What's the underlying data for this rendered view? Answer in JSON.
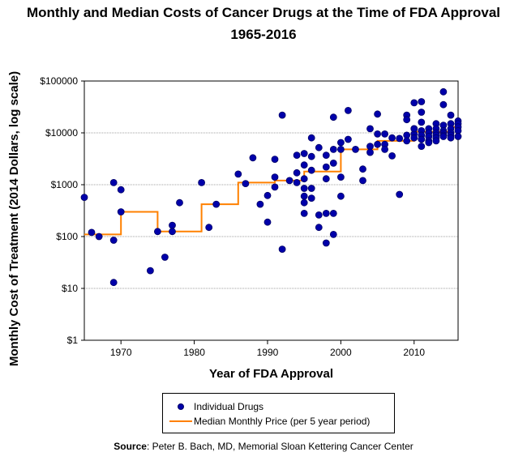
{
  "header": {
    "title_line1": "Monthly and Median Costs of Cancer Drugs at the Time of FDA Approval",
    "title_line2": "1965-2016"
  },
  "legend": {
    "scatter_label": "Individual Drugs",
    "line_label": "Median Monthly Price (per 5 year period)"
  },
  "source": {
    "label": "Source",
    "text": ": Peter B. Bach, MD, Memorial Sloan Kettering Cancer Center"
  },
  "colors": {
    "scatter": "#0000aa",
    "scatter_edge": "#000066",
    "line": "#ff8000",
    "grid": "#a0a0a0"
  },
  "chart_data": {
    "type": "scatter",
    "title": "Monthly and Median Costs of Cancer Drugs at the Time of FDA Approval 1965-2016",
    "xlabel": "Year of FDA Approval",
    "ylabel": "Monthly Cost of Treatment (2014 Dollars, log scale)",
    "xlim": [
      1965,
      2016
    ],
    "ylim": [
      1,
      100000
    ],
    "yscale": "log",
    "xticks": [
      1970,
      1980,
      1990,
      2000,
      2010
    ],
    "yticks": [
      {
        "value": 1,
        "label": "$1"
      },
      {
        "value": 10,
        "label": "$10"
      },
      {
        "value": 100,
        "label": "$100"
      },
      {
        "value": 1000,
        "label": "$1000"
      },
      {
        "value": 10000,
        "label": "$10000"
      },
      {
        "value": 100000,
        "label": "$100000"
      }
    ],
    "grid": "horizontal",
    "legend_position": "bottom",
    "series": [
      {
        "name": "Individual Drugs",
        "type": "scatter",
        "points": [
          [
            1965,
            570
          ],
          [
            1966,
            120
          ],
          [
            1967,
            100
          ],
          [
            1969,
            1100
          ],
          [
            1969,
            85
          ],
          [
            1969,
            13
          ],
          [
            1970,
            800
          ],
          [
            1970,
            300
          ],
          [
            1974,
            22
          ],
          [
            1975,
            125
          ],
          [
            1976,
            40
          ],
          [
            1977,
            165
          ],
          [
            1977,
            125
          ],
          [
            1978,
            450
          ],
          [
            1981,
            1100
          ],
          [
            1982,
            150
          ],
          [
            1983,
            420
          ],
          [
            1986,
            1600
          ],
          [
            1987,
            1050
          ],
          [
            1988,
            3300
          ],
          [
            1989,
            420
          ],
          [
            1990,
            620
          ],
          [
            1990,
            190
          ],
          [
            1991,
            3100
          ],
          [
            1991,
            1400
          ],
          [
            1991,
            900
          ],
          [
            1992,
            22000
          ],
          [
            1992,
            57
          ],
          [
            1993,
            1200
          ],
          [
            1994,
            3700
          ],
          [
            1994,
            1700
          ],
          [
            1994,
            1100
          ],
          [
            1995,
            4000
          ],
          [
            1995,
            2400
          ],
          [
            1995,
            1300
          ],
          [
            1995,
            850
          ],
          [
            1995,
            600
          ],
          [
            1995,
            450
          ],
          [
            1995,
            280
          ],
          [
            1996,
            8000
          ],
          [
            1996,
            3500
          ],
          [
            1996,
            1900
          ],
          [
            1996,
            850
          ],
          [
            1996,
            550
          ],
          [
            1997,
            5200
          ],
          [
            1997,
            260
          ],
          [
            1997,
            150
          ],
          [
            1998,
            3700
          ],
          [
            1998,
            2200
          ],
          [
            1998,
            1300
          ],
          [
            1998,
            280
          ],
          [
            1998,
            75
          ],
          [
            1999,
            20000
          ],
          [
            1999,
            4800
          ],
          [
            1999,
            2600
          ],
          [
            1999,
            280
          ],
          [
            1999,
            110
          ],
          [
            2000,
            6500
          ],
          [
            2000,
            4800
          ],
          [
            2000,
            1400
          ],
          [
            2000,
            600
          ],
          [
            2001,
            27000
          ],
          [
            2001,
            7500
          ],
          [
            2002,
            4800
          ],
          [
            2003,
            2000
          ],
          [
            2003,
            1200
          ],
          [
            2004,
            12000
          ],
          [
            2004,
            5500
          ],
          [
            2004,
            4200
          ],
          [
            2005,
            23000
          ],
          [
            2005,
            9500
          ],
          [
            2005,
            6000
          ],
          [
            2006,
            9500
          ],
          [
            2006,
            6000
          ],
          [
            2006,
            4800
          ],
          [
            2007,
            8000
          ],
          [
            2007,
            3600
          ],
          [
            2008,
            7800
          ],
          [
            2008,
            650
          ],
          [
            2009,
            22000
          ],
          [
            2009,
            18000
          ],
          [
            2009,
            9000
          ],
          [
            2009,
            7000
          ],
          [
            2010,
            38000
          ],
          [
            2010,
            12000
          ],
          [
            2010,
            9500
          ],
          [
            2010,
            8000
          ],
          [
            2010,
            12000
          ],
          [
            2011,
            40000
          ],
          [
            2011,
            25000
          ],
          [
            2011,
            16000
          ],
          [
            2011,
            11000
          ],
          [
            2011,
            9000
          ],
          [
            2011,
            7500
          ],
          [
            2011,
            5500
          ],
          [
            2012,
            12000
          ],
          [
            2012,
            10000
          ],
          [
            2012,
            8500
          ],
          [
            2012,
            7000
          ],
          [
            2012,
            6500
          ],
          [
            2013,
            15000
          ],
          [
            2013,
            12000
          ],
          [
            2013,
            10000
          ],
          [
            2013,
            9000
          ],
          [
            2013,
            8000
          ],
          [
            2013,
            7000
          ],
          [
            2014,
            62000
          ],
          [
            2014,
            35000
          ],
          [
            2014,
            14000
          ],
          [
            2014,
            11000
          ],
          [
            2014,
            10000
          ],
          [
            2014,
            9000
          ],
          [
            2014,
            8500
          ],
          [
            2015,
            22000
          ],
          [
            2015,
            15000
          ],
          [
            2015,
            12000
          ],
          [
            2015,
            10000
          ],
          [
            2015,
            9000
          ],
          [
            2015,
            8000
          ],
          [
            2016,
            17000
          ],
          [
            2016,
            15000
          ],
          [
            2016,
            13000
          ],
          [
            2016,
            11000
          ],
          [
            2016,
            8500
          ]
        ]
      },
      {
        "name": "Median Monthly Price (per 5 year period)",
        "type": "step",
        "points": [
          [
            1965,
            110
          ],
          [
            1970,
            110
          ],
          [
            1970,
            300
          ],
          [
            1975,
            300
          ],
          [
            1975,
            125
          ],
          [
            1981,
            125
          ],
          [
            1981,
            420
          ],
          [
            1986,
            420
          ],
          [
            1986,
            1100
          ],
          [
            1991,
            1100
          ],
          [
            1991,
            1200
          ],
          [
            1995,
            1200
          ],
          [
            1995,
            1800
          ],
          [
            2000,
            1800
          ],
          [
            2000,
            4800
          ],
          [
            2005,
            4800
          ],
          [
            2005,
            7000
          ],
          [
            2010,
            7000
          ],
          [
            2010,
            10500
          ],
          [
            2015,
            10500
          ],
          [
            2015,
            13000
          ],
          [
            2016,
            13000
          ]
        ]
      }
    ]
  }
}
